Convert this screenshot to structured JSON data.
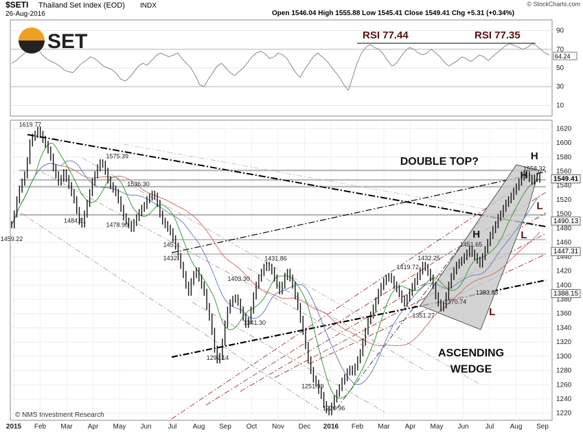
{
  "header": {
    "symbol": "$SETI",
    "name": "Thailand Set Index (EOD)",
    "exchange": "INDX",
    "date": "26-Aug-2016",
    "ohlc": "Open 1546.04  High 1555.88  Low 1545.41  Close 1549.41  Chg +5.31 (+0.34%)",
    "watermark": "© StockCharts.com",
    "logo_text": "SET",
    "credit": "© NMS Investment Research"
  },
  "colors": {
    "price": "#111111",
    "ma_green": "#3a9a3a",
    "ma_blue": "#6f7fc0",
    "ma_red": "#d07070",
    "trend": "#000000",
    "channel": "#8b1c1c",
    "wedge_fill": "#c8c8c8",
    "logo_orange": "#f0a020"
  },
  "chart_data": [
    {
      "type": "line",
      "panel": "rsi",
      "ylim": [
        0,
        100
      ],
      "y_ticks": [
        10,
        30,
        50,
        70,
        90
      ],
      "series": [
        {
          "values": [
            55,
            58,
            62,
            66,
            70,
            72,
            70,
            64,
            60,
            57,
            55,
            52,
            48,
            46,
            45,
            50,
            55,
            58,
            62,
            60,
            56,
            52,
            50,
            48,
            44,
            38,
            36,
            40,
            46,
            52,
            55,
            53,
            58,
            63,
            66,
            64,
            62,
            64,
            66,
            60,
            55,
            50,
            42,
            32,
            30,
            38,
            45,
            52,
            55,
            50,
            45,
            42,
            46,
            50,
            56,
            62,
            66,
            68,
            65,
            60,
            62,
            66,
            64,
            60,
            52,
            45,
            40,
            48,
            55,
            62,
            66,
            62,
            58,
            52,
            46,
            40,
            32,
            26,
            40,
            55,
            66,
            72,
            75,
            72,
            70,
            65,
            58,
            52,
            55,
            62,
            68,
            72,
            70,
            66,
            64,
            66,
            70,
            66,
            62,
            56,
            52,
            55,
            58,
            62,
            60,
            57,
            60,
            64,
            62,
            58,
            62,
            66,
            70,
            74,
            76,
            74,
            72,
            70,
            72,
            76,
            74,
            70,
            66,
            64
          ]
        }
      ],
      "annotations": [
        {
          "text": "RSI  77.44"
        },
        {
          "text": "RSI  77.35"
        }
      ],
      "value_tags": [
        "64.24"
      ]
    },
    {
      "type": "line",
      "panel": "price",
      "ylim": [
        1212,
        1630
      ],
      "x_ticks": [
        "2015",
        "Feb",
        "Mar",
        "Apr",
        "May",
        "Jun",
        "Jul",
        "Aug",
        "Sep",
        "Oct",
        "Nov",
        "Dec",
        "2016",
        "Feb",
        "Mar",
        "Apr",
        "May",
        "Jun",
        "Jul",
        "Aug",
        "Sep"
      ],
      "y_ticks": [
        1220,
        1240,
        1260,
        1280,
        1300,
        1320,
        1340,
        1360,
        1380,
        1400,
        1420,
        1440,
        1460,
        1480,
        1500,
        1520,
        1540,
        1560,
        1580,
        1600,
        1620
      ],
      "series": [
        {
          "values": [
            1485,
            1500,
            1520,
            1535,
            1545,
            1555,
            1575,
            1600,
            1608,
            1612,
            1618,
            1612,
            1605,
            1598,
            1590,
            1580,
            1565,
            1555,
            1545,
            1550,
            1558,
            1550,
            1540,
            1530,
            1520,
            1505,
            1490,
            1486,
            1500,
            1515,
            1530,
            1545,
            1555,
            1565,
            1572,
            1570,
            1560,
            1548,
            1540,
            1535,
            1530,
            1520,
            1508,
            1496,
            1490,
            1485,
            1480,
            1488,
            1495,
            1502,
            1508,
            1512,
            1520,
            1524,
            1528,
            1525,
            1515,
            1500,
            1490,
            1485,
            1480,
            1475,
            1465,
            1455,
            1440,
            1428,
            1415,
            1400,
            1390,
            1405,
            1415,
            1420,
            1410,
            1400,
            1390,
            1370,
            1355,
            1335,
            1310,
            1295,
            1300,
            1320,
            1345,
            1365,
            1375,
            1380,
            1382,
            1376,
            1365,
            1355,
            1345,
            1350,
            1365,
            1385,
            1400,
            1410,
            1418,
            1425,
            1428,
            1425,
            1420,
            1410,
            1400,
            1392,
            1400,
            1412,
            1418,
            1410,
            1400,
            1385,
            1370,
            1352,
            1335,
            1315,
            1295,
            1280,
            1268,
            1262,
            1252,
            1245,
            1232,
            1225,
            1222,
            1230,
            1240,
            1248,
            1256,
            1265,
            1270,
            1278,
            1282,
            1278,
            1285,
            1295,
            1305,
            1320,
            1335,
            1350,
            1358,
            1368,
            1378,
            1390,
            1398,
            1405,
            1410,
            1412,
            1408,
            1400,
            1395,
            1388,
            1380,
            1375,
            1382,
            1390,
            1398,
            1405,
            1412,
            1420,
            1428,
            1425,
            1418,
            1410,
            1400,
            1385,
            1375,
            1368,
            1372,
            1385,
            1400,
            1412,
            1420,
            1428,
            1432,
            1435,
            1440,
            1445,
            1450,
            1445,
            1440,
            1435,
            1430,
            1440,
            1450,
            1460,
            1470,
            1478,
            1485,
            1495,
            1500,
            1508,
            1515,
            1520,
            1525,
            1532,
            1538,
            1545,
            1552,
            1556,
            1555,
            1550,
            1546,
            1550,
            1553,
            1549
          ]
        },
        {
          "values": []
        },
        {
          "values": []
        },
        {
          "values": []
        }
      ],
      "price_labels": [
        {
          "text": "1619.77",
          "x": 0.035,
          "y": 1619.77
        },
        {
          "text": "1575.39",
          "x": 0.2,
          "y": 1575.39
        },
        {
          "text": "1536.30",
          "x": 0.24,
          "y": 1536.3
        },
        {
          "text": "1459.22",
          "x": 0.0,
          "y": 1459.22
        },
        {
          "text": "1484.91",
          "x": 0.12,
          "y": 1484.91
        },
        {
          "text": "1478.90",
          "x": 0.2,
          "y": 1478.9
        },
        {
          "text": "1451",
          "x": 0.3,
          "y": 1451
        },
        {
          "text": "1432",
          "x": 0.3,
          "y": 1432
        },
        {
          "text": "1431.86",
          "x": 0.5,
          "y": 1431.86
        },
        {
          "text": "1403.30",
          "x": 0.43,
          "y": 1403.3
        },
        {
          "text": "1341.30",
          "x": 0.46,
          "y": 1341.3
        },
        {
          "text": "1292.14",
          "x": 0.39,
          "y": 1292.14
        },
        {
          "text": "1251.99",
          "x": 0.57,
          "y": 1251.99
        },
        {
          "text": "1220.96",
          "x": 0.61,
          "y": 1220.96
        },
        {
          "text": "1432.25",
          "x": 0.79,
          "y": 1432.25
        },
        {
          "text": "1419.72",
          "x": 0.75,
          "y": 1419.72
        },
        {
          "text": "1451.65",
          "x": 0.87,
          "y": 1451.65
        },
        {
          "text": "1370.74",
          "x": 0.84,
          "y": 1370.74
        },
        {
          "text": "1351.27",
          "x": 0.78,
          "y": 1351.27
        },
        {
          "text": "1383.83",
          "x": 0.9,
          "y": 1383.83
        },
        {
          "text": "1558.32",
          "x": 0.99,
          "y": 1558.32
        }
      ],
      "value_tags": [
        {
          "text": "1549.41",
          "y": 1549.41
        },
        {
          "text": "1490.13",
          "y": 1490.13
        },
        {
          "text": "1447.31",
          "y": 1447.31
        },
        {
          "text": "1388.15",
          "y": 1388.15
        }
      ],
      "pattern_labels": [
        {
          "text": "DOUBLE TOP?",
          "x": 0.81,
          "y": 1569
        },
        {
          "text": "ASCENDING",
          "x": 0.87,
          "y": 1300
        },
        {
          "text": "WEDGE",
          "x": 0.87,
          "y": 1277
        },
        {
          "text": "H",
          "x": 0.99,
          "y": 1577
        },
        {
          "text": "H",
          "x": 0.97,
          "y": 1550
        },
        {
          "text": "H",
          "x": 0.88,
          "y": 1467
        },
        {
          "text": "L",
          "x": 1.0,
          "y": 1507
        },
        {
          "text": "L",
          "x": 0.97,
          "y": 1466
        },
        {
          "text": "L",
          "x": 0.91,
          "y": 1358
        }
      ]
    }
  ]
}
